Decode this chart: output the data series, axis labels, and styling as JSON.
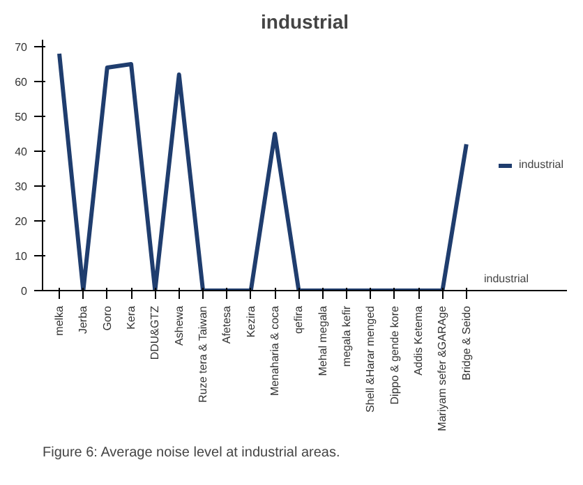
{
  "chart_data": {
    "type": "line",
    "title": "industrial",
    "categories": [
      "melka",
      "Jerba",
      "Goro",
      "Kera",
      "DDU&GTZ",
      "Ashewa",
      "Ruze tera & Taiwan",
      "Afetesa",
      "Kezira",
      "Menaharia & coca",
      "qefira",
      "Mehal megala",
      "megala kefir",
      "Shell &Harar menged",
      "Dippo & gende kore",
      "Addis Ketema",
      "Mariyam sefer &GARAge",
      "Bridge & Seido"
    ],
    "series": [
      {
        "name": "industrial",
        "color": "#1f3d6e",
        "values": [
          68,
          0,
          64,
          65,
          0,
          62,
          0,
          0,
          0,
          45,
          0,
          0,
          0,
          0,
          0,
          0,
          0,
          42
        ]
      }
    ],
    "ylim": [
      0,
      72
    ],
    "yticks": [
      0,
      10,
      20,
      30,
      40,
      50,
      60,
      70
    ],
    "legend": "right",
    "marker": "none",
    "annotations": [
      "industrial",
      "Figure 6: Average noise level at industrial areas."
    ]
  }
}
